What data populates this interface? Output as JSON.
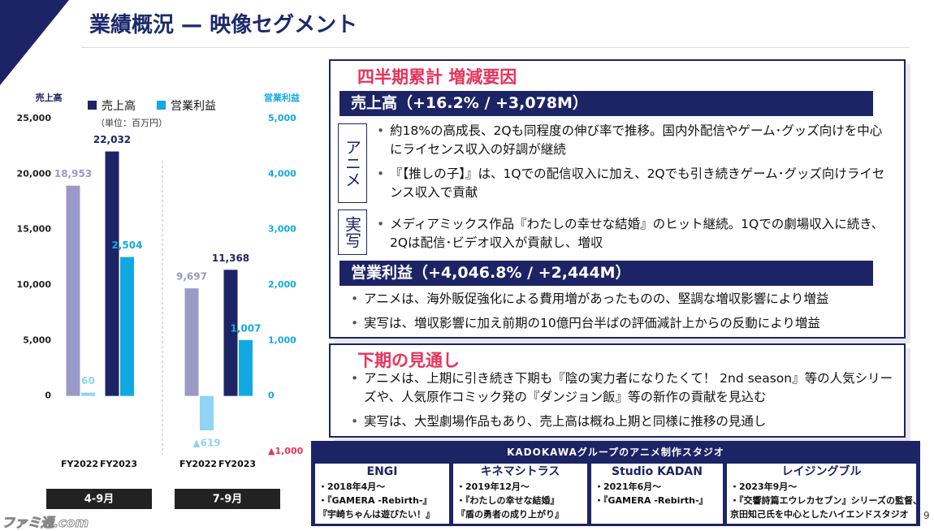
{
  "header": {
    "title": "業績概況 — 映像セグメント"
  },
  "chart_data": {
    "type": "bar",
    "y_label": "売上高",
    "y2_label": "営業利益",
    "unit_note": "（単位：百万円）",
    "groups": [
      "4-9月",
      "7-9月"
    ],
    "categories": [
      "FY2022",
      "FY2023",
      "FY2022",
      "FY2023"
    ],
    "ylim": [
      -5000,
      25000
    ],
    "yticks": [
      0,
      {
        "value": 5000,
        "label": "5,000"
      },
      {
        "value": 10000,
        "label": "10,000"
      },
      {
        "value": 15000,
        "label": "15,000"
      },
      {
        "value": 20000,
        "label": "20,000"
      },
      {
        "value": 25000,
        "label": "25,000"
      }
    ],
    "y2lim": [
      -1000,
      5000
    ],
    "y2ticks": [
      {
        "value": -1000,
        "label": "▲1,000"
      },
      0,
      {
        "value": 1000,
        "label": "1,000"
      },
      {
        "value": 2000,
        "label": "2,000"
      },
      {
        "value": 3000,
        "label": "3,000"
      },
      {
        "value": 4000,
        "label": "4,000"
      },
      {
        "value": 5000,
        "label": "5,000"
      }
    ],
    "series": [
      {
        "name": "売上高",
        "color": "#1d2466",
        "colors": [
          "#9b99c6",
          "#1d2466",
          "#9b99c6",
          "#1d2466"
        ],
        "values": [
          18953,
          22032,
          9697,
          11368
        ],
        "value_labels": [
          "18,953",
          "22,032",
          "9,697",
          "11,368"
        ]
      },
      {
        "name": "営業利益",
        "axis": "y2",
        "color": "#12a9e2",
        "colors": [
          "#8fd4f3",
          "#12a9e2",
          "#8fd4f3",
          "#12a9e2"
        ],
        "values": [
          60,
          2504,
          -619,
          1007
        ],
        "value_labels": [
          "60",
          "2,504",
          "▲619",
          "1,007"
        ]
      }
    ]
  },
  "summary": {
    "heading": "四半期累計 増減要因",
    "sales_heading": "売上高（+16.2% / +3,078M）",
    "anime_tag": "アニメ",
    "anime_bullets": [
      "約18%の高成長、2Qも同程度の伸び率で推移。国内外配信やゲーム･グッズ向けを中心にライセンス収入の好調が継続",
      "『【推しの子】』は、1Qでの配信収入に加え、2Qでも引き続きゲーム･グッズ向けライセンス収入で貢献"
    ],
    "live_tag": "実写",
    "live_bullets": [
      "メディアミックス作品『わたしの幸せな結婚』のヒット継続。1Qでの劇場収入に続き、2Qは配信･ビデオ収入が貢献し、増収"
    ],
    "profit_heading": "営業利益（+4,046.8% / +2,444M）",
    "profit_bullets": [
      "アニメは、海外販促強化による費用増があったものの、堅調な増収影響により増益",
      "実写は、増収影響に加え前期の10億円台半ばの評価減計上からの反動により増益"
    ]
  },
  "outlook": {
    "heading": "下期の見通し",
    "bullets": [
      "アニメは、上期に引き続き下期も『陰の実力者になりたくて！ 2nd season』等の人気シリーズや、人気原作コミック発の『ダンジョン飯』等の新作の貢献を見込む",
      "実写は、大型劇場作品もあり、売上高は概ね上期と同様に推移の見通し"
    ]
  },
  "studios": {
    "title": "KADOKAWAグループのアニメ制作スタジオ",
    "items": [
      {
        "name": "ENGI",
        "lines": [
          "・2018年4月～",
          "・『GAMERA -Rebirth-』",
          "『宇崎ちゃんは遊びたい！』"
        ]
      },
      {
        "name": "キネマシトラス",
        "lines": [
          "・2019年12月～",
          "・『わたしの幸せな結婚』",
          "『盾の勇者の成り上がり』"
        ]
      },
      {
        "name": "Studio KADAN",
        "lines": [
          "・2021年6月～",
          "・『GAMERA -Rebirth-』"
        ]
      },
      {
        "name": "レイジングブル",
        "lines": [
          "・2023年9月～",
          "・『交響詩篇エウレカセブン』シリーズの監督、",
          "京田知己氏を中心としたハイエンドスタジオ"
        ]
      }
    ]
  },
  "watermark": "ファミ通.com",
  "page_number": 9
}
